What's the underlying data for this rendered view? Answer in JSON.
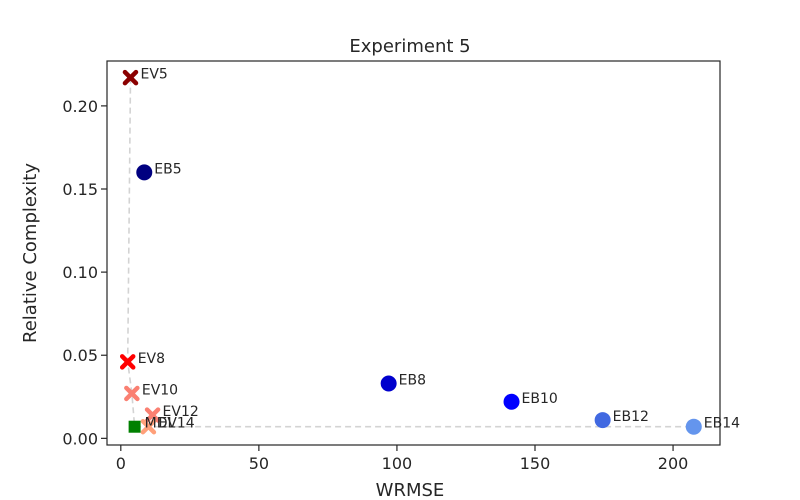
{
  "chart_data": {
    "type": "scatter",
    "title": "Experiment 5",
    "xlabel": "WRMSE",
    "ylabel": "Relative Complexity",
    "xlim": [
      -5,
      217
    ],
    "ylim": [
      -0.004,
      0.227
    ],
    "xticks": [
      "0",
      "50",
      "100",
      "150",
      "200"
    ],
    "xtick_values": [
      0,
      50,
      100,
      150,
      200
    ],
    "yticks": [
      "0.00",
      "0.05",
      "0.10",
      "0.15",
      "0.20"
    ],
    "ytick_values": [
      0.0,
      0.05,
      0.1,
      0.15,
      0.2
    ],
    "grid": false,
    "points": [
      {
        "label": "EV5",
        "x": 3.5,
        "y": 0.217,
        "marker": "x",
        "color": "#8b0000"
      },
      {
        "label": "EB5",
        "x": 8.5,
        "y": 0.16,
        "marker": "circle",
        "color": "#000080"
      },
      {
        "label": "EV8",
        "x": 2.5,
        "y": 0.046,
        "marker": "x",
        "color": "#ff0000"
      },
      {
        "label": "EV10",
        "x": 4.0,
        "y": 0.027,
        "marker": "x",
        "color": "#fa8072"
      },
      {
        "label": "EV12",
        "x": 11.5,
        "y": 0.014,
        "marker": "x",
        "color": "#fa8072"
      },
      {
        "label": "EV14",
        "x": 10.0,
        "y": 0.007,
        "marker": "x",
        "color": "#ffa07a"
      },
      {
        "label": "MDL",
        "x": 5.0,
        "y": 0.007,
        "marker": "square",
        "color": "#008000"
      },
      {
        "label": "EB8",
        "x": 97.0,
        "y": 0.033,
        "marker": "circle",
        "color": "#0000cd"
      },
      {
        "label": "EB10",
        "x": 141.5,
        "y": 0.022,
        "marker": "circle",
        "color": "#0000ff"
      },
      {
        "label": "EB12",
        "x": 174.5,
        "y": 0.011,
        "marker": "circle",
        "color": "#4169e1"
      },
      {
        "label": "EB14",
        "x": 207.5,
        "y": 0.007,
        "marker": "circle",
        "color": "#6495ed"
      }
    ],
    "frontier": [
      {
        "x": 3.5,
        "y": 0.217
      },
      {
        "x": 2.5,
        "y": 0.046
      },
      {
        "x": 4.0,
        "y": 0.027
      },
      {
        "x": 5.0,
        "y": 0.007
      },
      {
        "x": 207.5,
        "y": 0.007
      }
    ]
  }
}
